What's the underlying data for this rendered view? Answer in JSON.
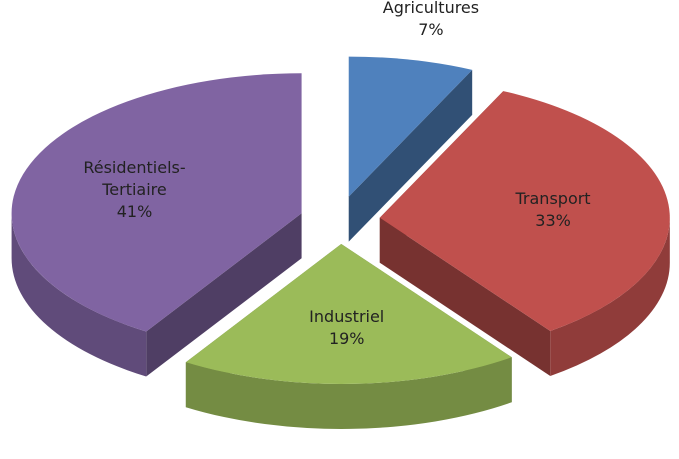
{
  "chart_data": {
    "type": "pie",
    "categories": [
      "Agricultures",
      "Transport",
      "Industriel",
      "Résidentiels-Tertiaire"
    ],
    "values": [
      7,
      33,
      19,
      41
    ],
    "value_labels": [
      "7%",
      "33%",
      "19%",
      "41%"
    ],
    "colors": [
      "#4f81bd",
      "#c0504d",
      "#9bbb59",
      "#8064a2"
    ]
  }
}
